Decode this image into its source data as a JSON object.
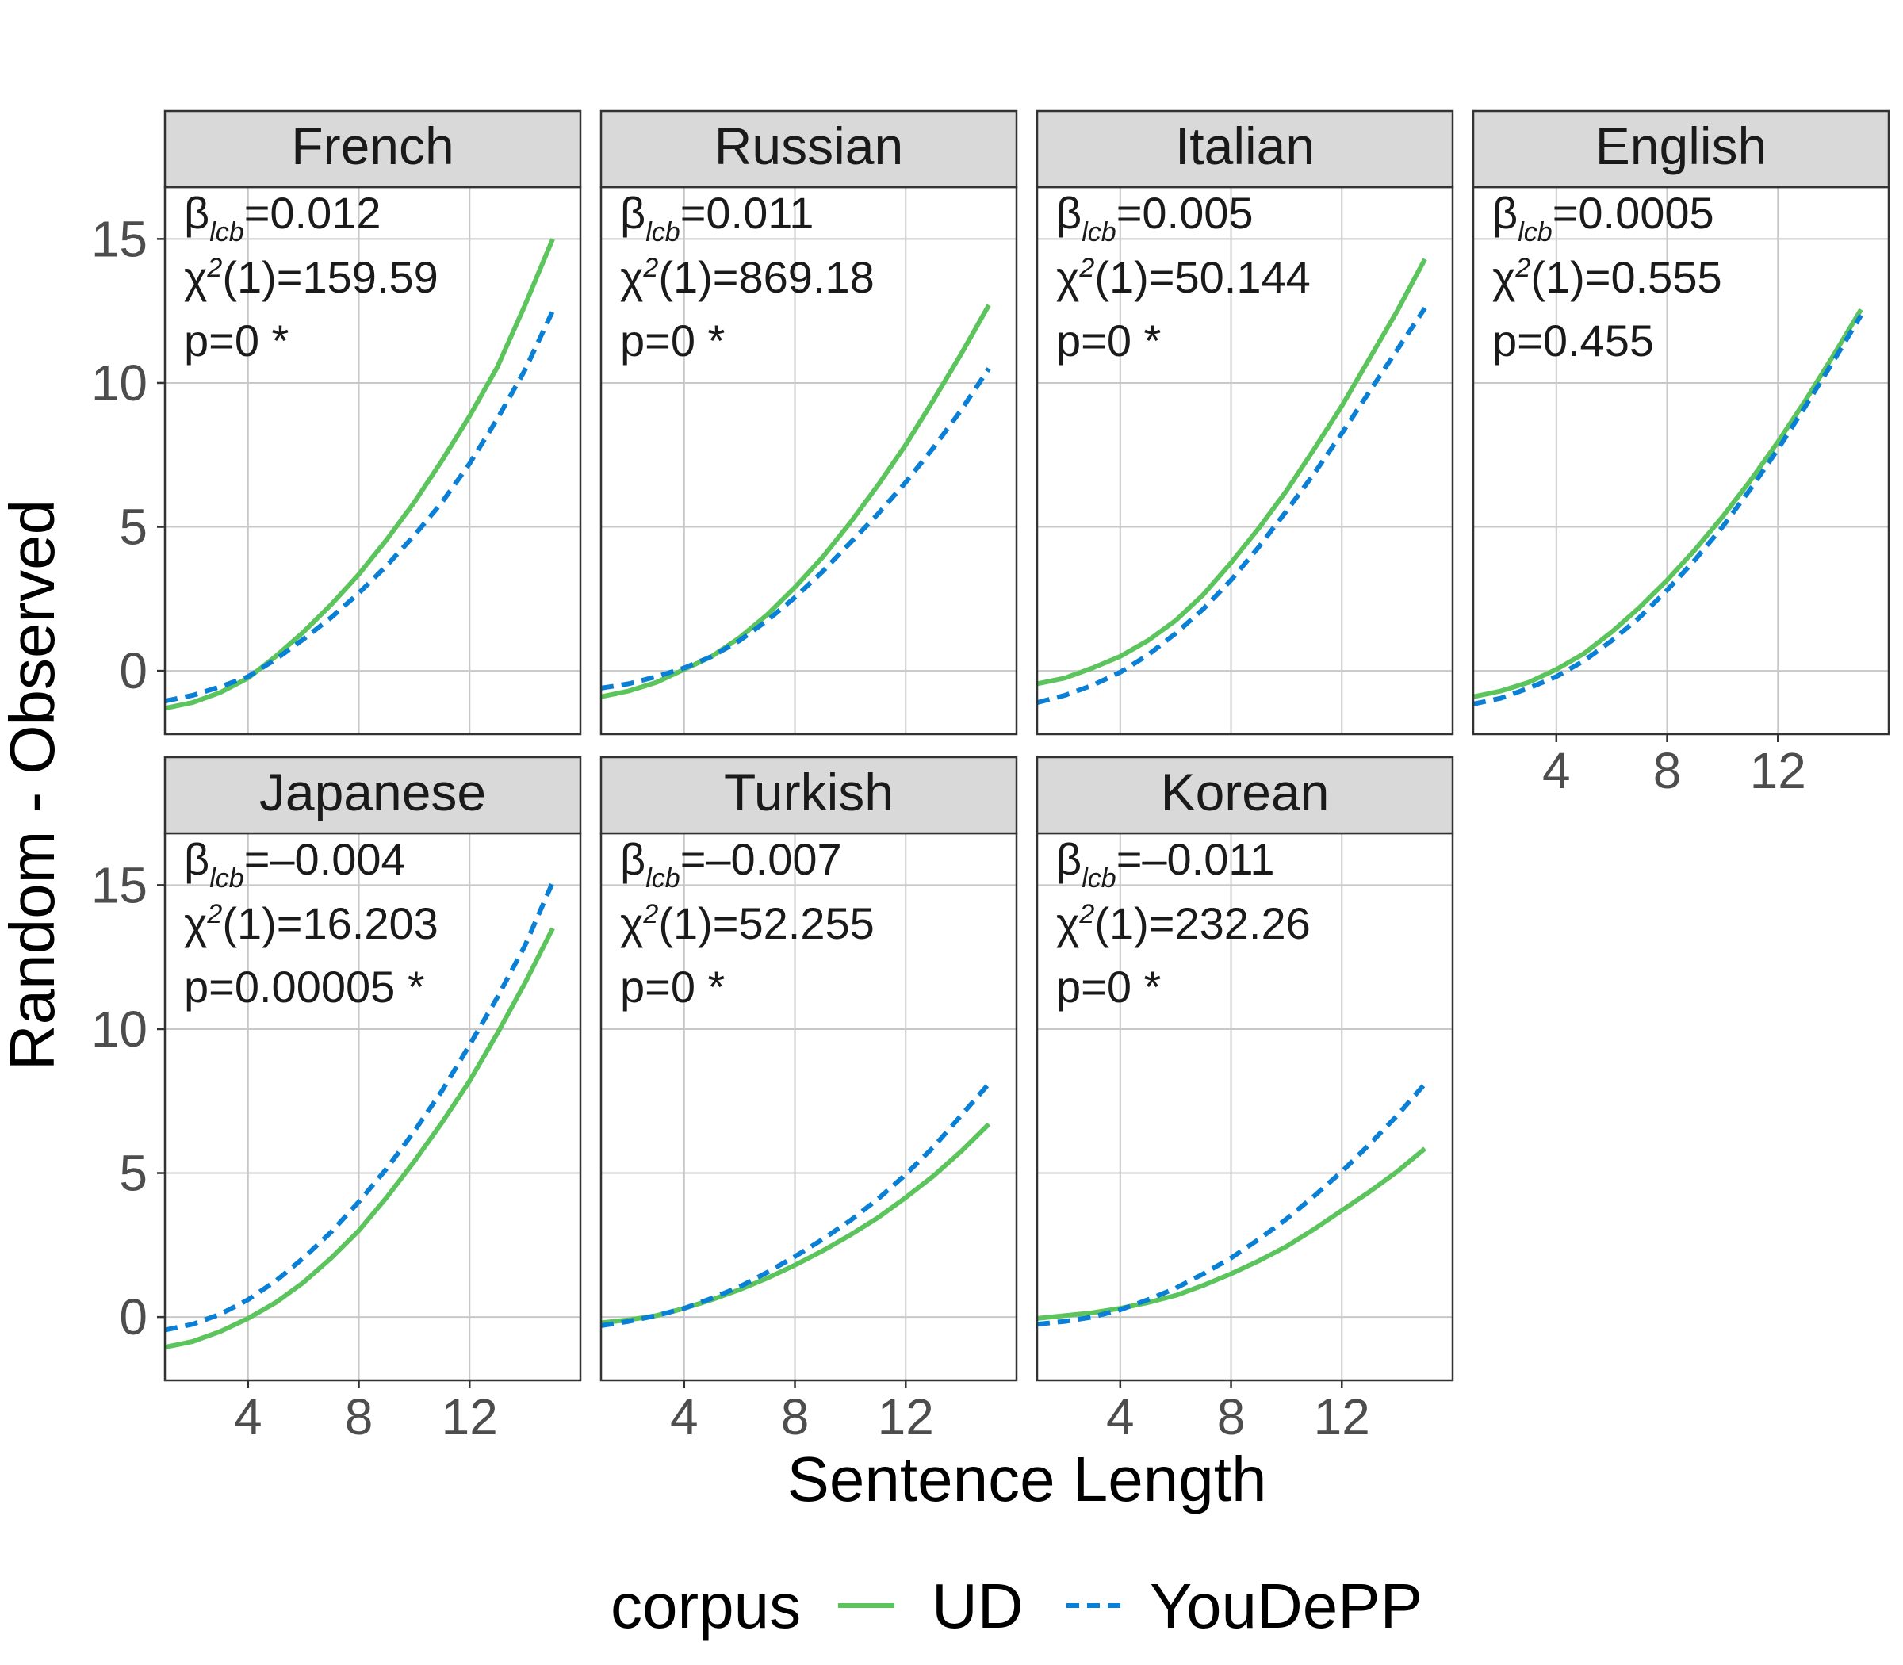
{
  "chart_data": {
    "type": "line",
    "xlabel": "Sentence Length",
    "ylabel": "Random - Observed",
    "xlim": [
      1,
      16
    ],
    "ylim": [
      -2.2,
      16.8
    ],
    "x_ticks": [
      4,
      8,
      12
    ],
    "y_ticks": [
      0,
      5,
      10,
      15
    ],
    "grid": true,
    "legend": {
      "title": "corpus",
      "placement": "bottom",
      "entries": [
        {
          "label": "UD",
          "color": "#5cc45c",
          "style": "solid"
        },
        {
          "label": "YouDePP",
          "color": "#0a7fd6",
          "style": "dashed"
        }
      ]
    },
    "x": [
      1,
      2,
      3,
      4,
      5,
      6,
      7,
      8,
      9,
      10,
      11,
      12,
      13,
      14,
      15
    ],
    "panels": [
      {
        "label": "French",
        "stats": {
          "beta_symbol": "β",
          "beta_sub": "lcb",
          "beta_value": "=0.012",
          "chi_symbol": "χ",
          "chi_sup": "2",
          "chi_value": "(1)=159.59",
          "p_text": "p=0 *"
        },
        "series": [
          {
            "name": "UD",
            "values": [
              -1.3,
              -1.1,
              -0.75,
              -0.25,
              0.5,
              1.35,
              2.3,
              3.35,
              4.55,
              5.85,
              7.3,
              8.85,
              10.55,
              12.7,
              15.0
            ]
          },
          {
            "name": "YouDePP",
            "values": [
              -1.05,
              -0.85,
              -0.55,
              -0.2,
              0.4,
              1.1,
              1.85,
              2.7,
              3.65,
              4.7,
              5.85,
              7.2,
              8.75,
              10.45,
              12.5
            ]
          }
        ]
      },
      {
        "label": "Russian",
        "stats": {
          "beta_symbol": "β",
          "beta_sub": "lcb",
          "beta_value": "=0.011",
          "chi_symbol": "χ",
          "chi_sup": "2",
          "chi_value": "(1)=869.18",
          "p_text": "p=0 *"
        },
        "series": [
          {
            "name": "UD",
            "values": [
              -0.9,
              -0.7,
              -0.4,
              0.05,
              0.5,
              1.15,
              1.95,
              2.9,
              3.95,
              5.15,
              6.45,
              7.85,
              9.4,
              11.0,
              12.7
            ]
          },
          {
            "name": "YouDePP",
            "values": [
              -0.6,
              -0.45,
              -0.2,
              0.1,
              0.5,
              1.05,
              1.75,
              2.55,
              3.45,
              4.45,
              5.45,
              6.55,
              7.75,
              9.05,
              10.5
            ]
          }
        ]
      },
      {
        "label": "Italian",
        "stats": {
          "beta_symbol": "β",
          "beta_sub": "lcb",
          "beta_value": "=0.005",
          "chi_symbol": "χ",
          "chi_sup": "2",
          "chi_value": "(1)=50.144",
          "p_text": "p=0 *"
        },
        "series": [
          {
            "name": "UD",
            "values": [
              -0.45,
              -0.25,
              0.1,
              0.5,
              1.05,
              1.75,
              2.65,
              3.75,
              4.95,
              6.25,
              7.7,
              9.2,
              10.85,
              12.5,
              14.3
            ]
          },
          {
            "name": "YouDePP",
            "values": [
              -1.1,
              -0.85,
              -0.5,
              -0.05,
              0.55,
              1.3,
              2.15,
              3.15,
              4.3,
              5.55,
              6.85,
              8.25,
              9.7,
              11.15,
              12.6
            ]
          }
        ]
      },
      {
        "label": "English",
        "stats": {
          "beta_symbol": "β",
          "beta_sub": "lcb",
          "beta_value": "=0.0005",
          "chi_symbol": "χ",
          "chi_sup": "2",
          "chi_value": "(1)=0.555",
          "p_text": "p=0.455"
        },
        "series": [
          {
            "name": "UD",
            "values": [
              -0.9,
              -0.7,
              -0.4,
              0.05,
              0.6,
              1.35,
              2.2,
              3.15,
              4.2,
              5.35,
              6.6,
              7.95,
              9.4,
              10.95,
              12.55
            ]
          },
          {
            "name": "YouDePP",
            "values": [
              -1.15,
              -0.95,
              -0.6,
              -0.2,
              0.35,
              1.05,
              1.85,
              2.8,
              3.85,
              5.0,
              6.3,
              7.7,
              9.2,
              10.75,
              12.35
            ]
          }
        ]
      },
      {
        "label": "Japanese",
        "stats": {
          "beta_symbol": "β",
          "beta_sub": "lcb",
          "beta_value": "=–0.004",
          "chi_symbol": "χ",
          "chi_sup": "2",
          "chi_value": "(1)=16.203",
          "p_text": "p=0.00005 *"
        },
        "series": [
          {
            "name": "UD",
            "values": [
              -1.05,
              -0.85,
              -0.5,
              -0.05,
              0.5,
              1.2,
              2.05,
              3.0,
              4.15,
              5.4,
              6.75,
              8.2,
              9.85,
              11.6,
              13.5
            ]
          },
          {
            "name": "YouDePP",
            "values": [
              -0.45,
              -0.25,
              0.1,
              0.6,
              1.25,
              2.05,
              2.95,
              4.0,
              5.15,
              6.45,
              7.85,
              9.45,
              11.1,
              12.9,
              15.1
            ]
          }
        ]
      },
      {
        "label": "Turkish",
        "stats": {
          "beta_symbol": "β",
          "beta_sub": "lcb",
          "beta_value": "=–0.007",
          "chi_symbol": "χ",
          "chi_sup": "2",
          "chi_value": "(1)=52.255",
          "p_text": "p=0 *"
        },
        "series": [
          {
            "name": "UD",
            "values": [
              -0.2,
              -0.1,
              0.05,
              0.3,
              0.6,
              0.95,
              1.35,
              1.8,
              2.3,
              2.85,
              3.45,
              4.15,
              4.9,
              5.75,
              6.7
            ]
          },
          {
            "name": "YouDePP",
            "values": [
              -0.3,
              -0.15,
              0.05,
              0.3,
              0.65,
              1.05,
              1.55,
              2.1,
              2.7,
              3.35,
              4.1,
              4.95,
              5.9,
              7.0,
              8.1
            ]
          }
        ]
      },
      {
        "label": "Korean",
        "stats": {
          "beta_symbol": "β",
          "beta_sub": "lcb",
          "beta_value": "=–0.011",
          "chi_symbol": "χ",
          "chi_sup": "2",
          "chi_value": "(1)=232.26",
          "p_text": "p=0 *"
        },
        "series": [
          {
            "name": "UD",
            "values": [
              -0.05,
              0.05,
              0.15,
              0.3,
              0.5,
              0.75,
              1.1,
              1.5,
              1.95,
              2.45,
              3.05,
              3.7,
              4.35,
              5.05,
              5.85
            ]
          },
          {
            "name": "YouDePP",
            "values": [
              -0.25,
              -0.15,
              0.0,
              0.25,
              0.6,
              1.0,
              1.5,
              2.05,
              2.7,
              3.4,
              4.2,
              5.05,
              6.0,
              7.0,
              8.1
            ]
          }
        ]
      }
    ]
  }
}
